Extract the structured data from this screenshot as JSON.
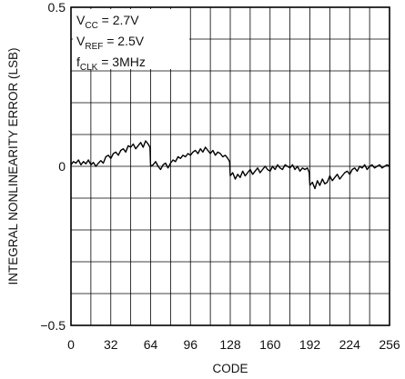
{
  "chart_data": {
    "type": "line",
    "xlabel": "CODE",
    "ylabel": "INTEGRAL NONLINEARITY ERROR (LSB)",
    "xlim": [
      0,
      256
    ],
    "ylim": [
      -0.5,
      0.5
    ],
    "x_ticks": [
      0,
      32,
      64,
      96,
      128,
      160,
      192,
      224,
      256
    ],
    "y_ticks": [
      {
        "value": 0.5,
        "label": "0.5"
      },
      {
        "value": 0,
        "label": "0"
      },
      {
        "value": -0.5,
        "label": "−0.5"
      }
    ],
    "grid": true,
    "grid_x_step": 16,
    "grid_y_step": 0.1,
    "annotations": [
      {
        "main": "V",
        "sub": "CC",
        "rest": " = 2.7V"
      },
      {
        "main": "V",
        "sub": "REF",
        "rest": " = 2.5V"
      },
      {
        "main": "f",
        "sub": "CLK",
        "rest": " = 3MHz"
      }
    ],
    "series": [
      {
        "x": [
          0,
          2,
          4,
          6,
          8,
          10,
          12,
          14,
          16,
          18,
          20,
          22,
          24,
          26,
          28,
          30,
          32,
          34,
          36,
          38,
          40,
          42,
          44,
          46,
          48,
          50,
          52,
          54,
          56,
          58,
          60,
          62,
          63.5,
          64,
          66,
          68,
          70,
          72,
          74,
          76,
          78,
          80,
          82,
          84,
          86,
          88,
          90,
          92,
          94,
          96,
          98,
          100,
          102,
          104,
          106,
          108,
          110,
          112,
          114,
          116,
          118,
          120,
          122,
          124,
          126,
          127.5,
          128,
          130,
          132,
          134,
          136,
          138,
          140,
          142,
          144,
          146,
          148,
          150,
          152,
          154,
          156,
          158,
          160,
          162,
          164,
          166,
          168,
          170,
          172,
          174,
          176,
          178,
          180,
          182,
          184,
          186,
          188,
          190,
          191.5,
          192,
          194,
          196,
          198,
          200,
          202,
          204,
          206,
          208,
          210,
          212,
          214,
          216,
          218,
          220,
          222,
          224,
          226,
          228,
          230,
          232,
          234,
          236,
          238,
          240,
          242,
          244,
          246,
          248,
          250,
          252,
          254,
          256
        ],
        "y": [
          0.005,
          0.015,
          0.01,
          0.02,
          0.005,
          0.015,
          0.008,
          0.02,
          0.005,
          0.012,
          0.0,
          0.01,
          0.018,
          0.01,
          0.03,
          0.035,
          0.025,
          0.04,
          0.045,
          0.035,
          0.05,
          0.055,
          0.045,
          0.065,
          0.06,
          0.07,
          0.055,
          0.065,
          0.075,
          0.06,
          0.08,
          0.07,
          0.06,
          0.0,
          0.005,
          0.015,
          0.0,
          -0.01,
          0.005,
          0.01,
          -0.005,
          0.01,
          0.02,
          0.015,
          0.03,
          0.025,
          0.035,
          0.03,
          0.04,
          0.035,
          0.045,
          0.05,
          0.04,
          0.055,
          0.045,
          0.06,
          0.05,
          0.04,
          0.05,
          0.035,
          0.045,
          0.04,
          0.03,
          0.035,
          0.025,
          0.015,
          -0.03,
          -0.02,
          -0.04,
          -0.025,
          -0.035,
          -0.015,
          -0.03,
          -0.02,
          -0.01,
          -0.025,
          -0.015,
          -0.005,
          -0.02,
          -0.01,
          0.0,
          -0.01,
          -0.015,
          0.0,
          -0.01,
          0.005,
          -0.005,
          -0.01,
          0.005,
          0.0,
          -0.005,
          0.005,
          -0.01,
          0.0,
          -0.015,
          -0.005,
          -0.01,
          -0.005,
          -0.02,
          -0.06,
          -0.05,
          -0.07,
          -0.045,
          -0.06,
          -0.04,
          -0.055,
          -0.05,
          -0.03,
          -0.045,
          -0.035,
          -0.025,
          -0.04,
          -0.03,
          -0.02,
          -0.015,
          -0.025,
          -0.01,
          -0.005,
          -0.015,
          0.0,
          -0.005,
          0.005,
          -0.01,
          0.0,
          0.005,
          -0.005,
          0.0,
          0.005,
          -0.005,
          0.0,
          0.005,
          0.0
        ]
      }
    ]
  }
}
